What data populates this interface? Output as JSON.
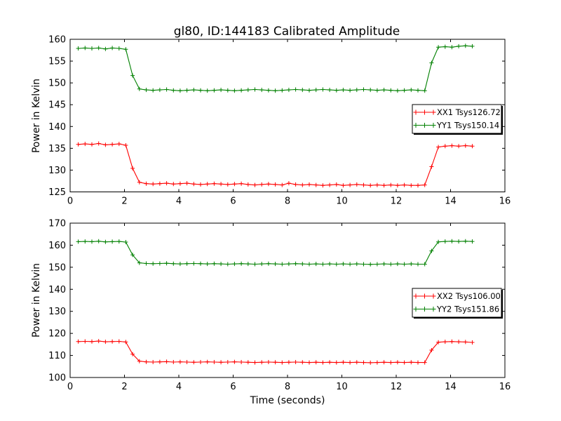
{
  "figure": {
    "title": "gl80, ID:144183 Calibrated Amplitude",
    "xlabel": "Time (seconds)",
    "ylabel": "Power in Kelvin",
    "background": "#ffffff",
    "frame_color": "#000000",
    "red": "#ff0000",
    "green": "#008000"
  },
  "chart_data": [
    {
      "type": "line",
      "title": "gl80, ID:144183 Calibrated Amplitude",
      "xlabel": "",
      "ylabel": "Power in Kelvin",
      "xlim": [
        0,
        16
      ],
      "ylim": [
        125,
        160
      ],
      "xticks": [
        0,
        2,
        4,
        6,
        8,
        10,
        12,
        14,
        16
      ],
      "yticks": [
        125,
        130,
        135,
        140,
        145,
        150,
        155,
        160
      ],
      "grid": false,
      "legend_position": "center-right",
      "x": [
        0.3,
        0.55,
        0.8,
        1.05,
        1.3,
        1.55,
        1.8,
        2.05,
        2.3,
        2.55,
        2.8,
        3.05,
        3.3,
        3.55,
        3.8,
        4.05,
        4.3,
        4.55,
        4.8,
        5.05,
        5.3,
        5.55,
        5.8,
        6.05,
        6.3,
        6.55,
        6.8,
        7.05,
        7.3,
        7.55,
        7.8,
        8.05,
        8.3,
        8.55,
        8.8,
        9.05,
        9.3,
        9.55,
        9.8,
        10.05,
        10.3,
        10.55,
        10.8,
        11.05,
        11.3,
        11.55,
        11.8,
        12.05,
        12.3,
        12.55,
        12.8,
        13.05,
        13.3,
        13.55,
        13.8,
        14.05,
        14.3,
        14.55,
        14.8
      ],
      "series": [
        {
          "name": "XX1 Tsys126.72",
          "color": "#ff0000",
          "marker": "+",
          "values": [
            135.9,
            136.0,
            135.9,
            136.1,
            135.8,
            135.9,
            136.0,
            135.7,
            130.4,
            127.2,
            126.9,
            126.8,
            126.9,
            127.0,
            126.8,
            126.9,
            127.0,
            126.8,
            126.7,
            126.8,
            126.9,
            126.8,
            126.7,
            126.8,
            126.9,
            126.7,
            126.6,
            126.7,
            126.8,
            126.7,
            126.6,
            127.0,
            126.7,
            126.6,
            126.7,
            126.6,
            126.5,
            126.6,
            126.7,
            126.5,
            126.6,
            126.7,
            126.6,
            126.5,
            126.6,
            126.5,
            126.6,
            126.5,
            126.6,
            126.5,
            126.5,
            126.6,
            130.8,
            135.3,
            135.5,
            135.6,
            135.5,
            135.6,
            135.5
          ]
        },
        {
          "name": "YY1 Tsys150.14",
          "color": "#008000",
          "marker": "+",
          "values": [
            157.9,
            158.0,
            157.9,
            158.0,
            157.8,
            158.0,
            157.9,
            157.7,
            151.7,
            148.6,
            148.4,
            148.3,
            148.4,
            148.5,
            148.3,
            148.2,
            148.3,
            148.4,
            148.3,
            148.2,
            148.3,
            148.4,
            148.3,
            148.2,
            148.3,
            148.4,
            148.5,
            148.4,
            148.3,
            148.2,
            148.3,
            148.4,
            148.5,
            148.4,
            148.3,
            148.4,
            148.5,
            148.4,
            148.3,
            148.4,
            148.3,
            148.4,
            148.5,
            148.4,
            148.3,
            148.4,
            148.3,
            148.2,
            148.3,
            148.4,
            148.3,
            148.2,
            154.6,
            158.2,
            158.3,
            158.2,
            158.4,
            158.5,
            158.4
          ]
        }
      ]
    },
    {
      "type": "line",
      "title": "",
      "xlabel": "Time (seconds)",
      "ylabel": "Power in Kelvin",
      "xlim": [
        0,
        16
      ],
      "ylim": [
        100,
        170
      ],
      "xticks": [
        0,
        2,
        4,
        6,
        8,
        10,
        12,
        14,
        16
      ],
      "yticks": [
        100,
        110,
        120,
        130,
        140,
        150,
        160,
        170
      ],
      "grid": false,
      "legend_position": "center-right",
      "x": [
        0.3,
        0.55,
        0.8,
        1.05,
        1.3,
        1.55,
        1.8,
        2.05,
        2.3,
        2.55,
        2.8,
        3.05,
        3.3,
        3.55,
        3.8,
        4.05,
        4.3,
        4.55,
        4.8,
        5.05,
        5.3,
        5.55,
        5.8,
        6.05,
        6.3,
        6.55,
        6.8,
        7.05,
        7.3,
        7.55,
        7.8,
        8.05,
        8.3,
        8.55,
        8.8,
        9.05,
        9.3,
        9.55,
        9.8,
        10.05,
        10.3,
        10.55,
        10.8,
        11.05,
        11.3,
        11.55,
        11.8,
        12.05,
        12.3,
        12.55,
        12.8,
        13.05,
        13.3,
        13.55,
        13.8,
        14.05,
        14.3,
        14.55,
        14.8
      ],
      "series": [
        {
          "name": "XX2 Tsys106.00",
          "color": "#ff0000",
          "marker": "+",
          "values": [
            116.3,
            116.4,
            116.3,
            116.5,
            116.2,
            116.3,
            116.4,
            116.1,
            110.6,
            107.4,
            107.1,
            107.0,
            107.1,
            107.2,
            107.0,
            107.1,
            107.0,
            106.9,
            107.0,
            107.1,
            107.0,
            106.9,
            107.0,
            107.1,
            107.0,
            106.9,
            106.8,
            106.9,
            107.0,
            106.9,
            106.8,
            106.9,
            107.0,
            106.9,
            106.8,
            106.9,
            106.8,
            106.9,
            106.8,
            106.9,
            106.8,
            106.9,
            106.8,
            106.7,
            106.8,
            106.9,
            106.8,
            106.9,
            106.8,
            106.9,
            106.8,
            106.8,
            112.4,
            116.0,
            116.2,
            116.3,
            116.2,
            116.1,
            115.9
          ]
        },
        {
          "name": "YY2 Tsys151.86",
          "color": "#008000",
          "marker": "+",
          "values": [
            161.6,
            161.7,
            161.6,
            161.8,
            161.5,
            161.6,
            161.7,
            161.4,
            155.6,
            152.0,
            151.7,
            151.6,
            151.7,
            151.8,
            151.6,
            151.5,
            151.6,
            151.7,
            151.6,
            151.5,
            151.6,
            151.5,
            151.4,
            151.5,
            151.6,
            151.5,
            151.4,
            151.5,
            151.6,
            151.5,
            151.4,
            151.5,
            151.6,
            151.5,
            151.4,
            151.5,
            151.4,
            151.5,
            151.4,
            151.5,
            151.4,
            151.5,
            151.4,
            151.3,
            151.4,
            151.5,
            151.4,
            151.5,
            151.4,
            151.5,
            151.4,
            151.4,
            157.4,
            161.5,
            161.7,
            161.8,
            161.7,
            161.8,
            161.7
          ]
        }
      ]
    }
  ]
}
